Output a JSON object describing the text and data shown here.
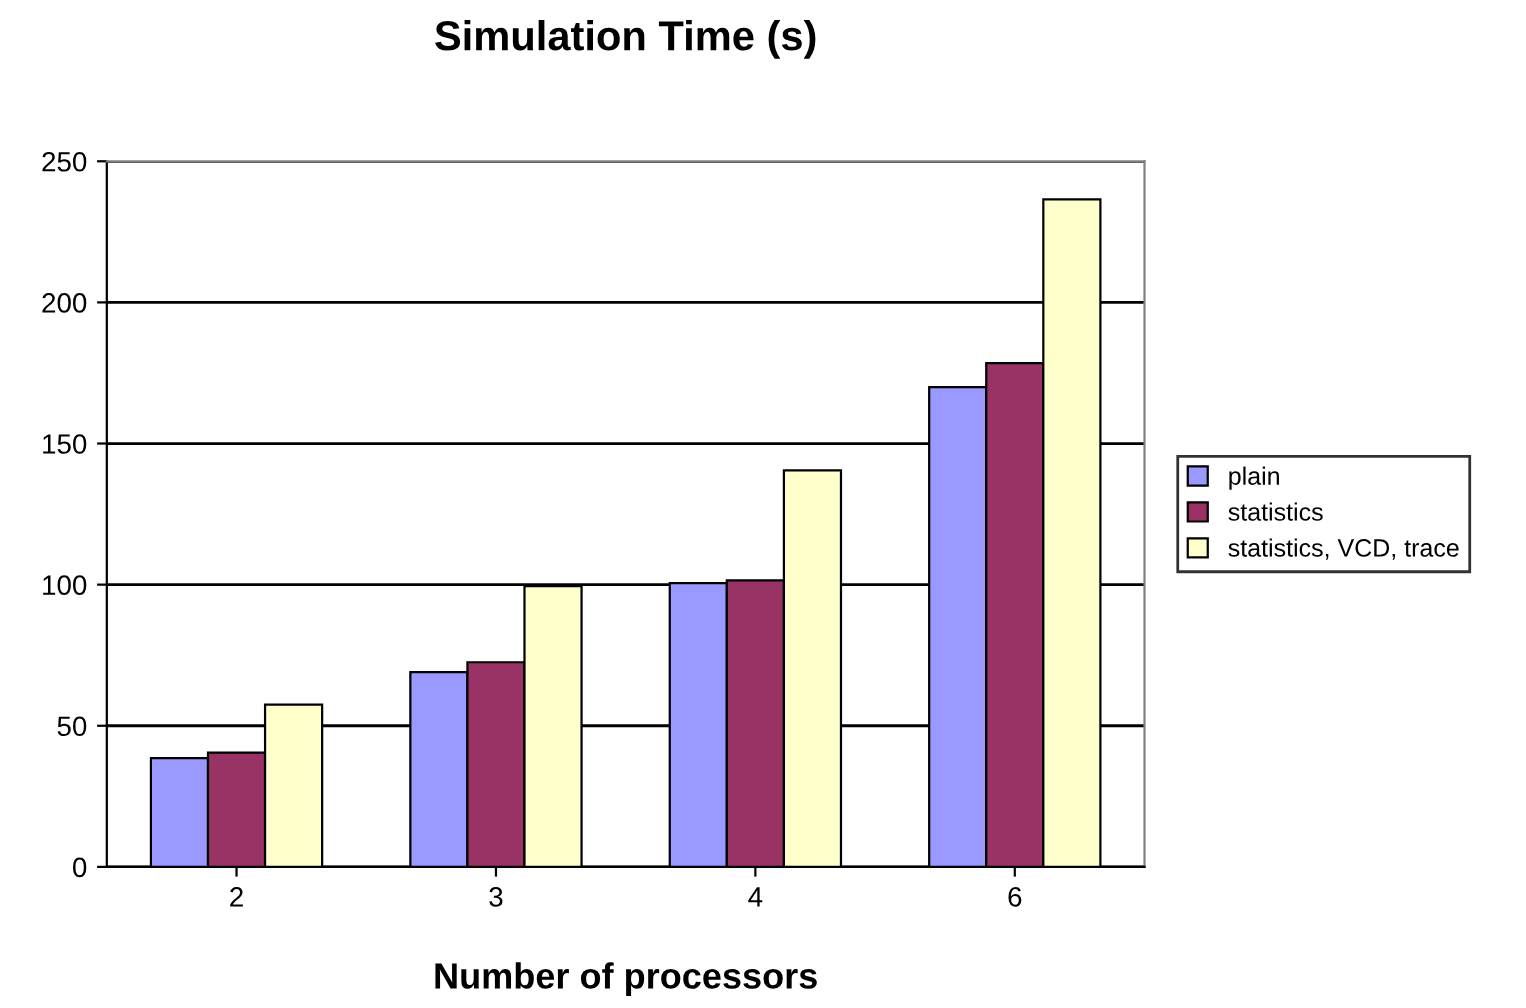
{
  "chart_data": {
    "type": "bar",
    "title": "Simulation Time (s)",
    "xlabel": "Number of processors",
    "categories": [
      "2",
      "3",
      "4",
      "6"
    ],
    "series": [
      {
        "name": "plain",
        "color": "#9999ff",
        "values": [
          38.5,
          69,
          100.5,
          170
        ]
      },
      {
        "name": "statistics",
        "color": "#993366",
        "values": [
          40.5,
          72.5,
          101.5,
          178.5
        ]
      },
      {
        "name": "statistics, VCD, trace",
        "color": "#ffffcc",
        "values": [
          57.5,
          99.5,
          140.5,
          236.5
        ]
      }
    ],
    "ylim": [
      0,
      250
    ],
    "yticks": [
      0,
      50,
      100,
      150,
      200,
      250
    ],
    "grid": "y",
    "legend": "right"
  }
}
